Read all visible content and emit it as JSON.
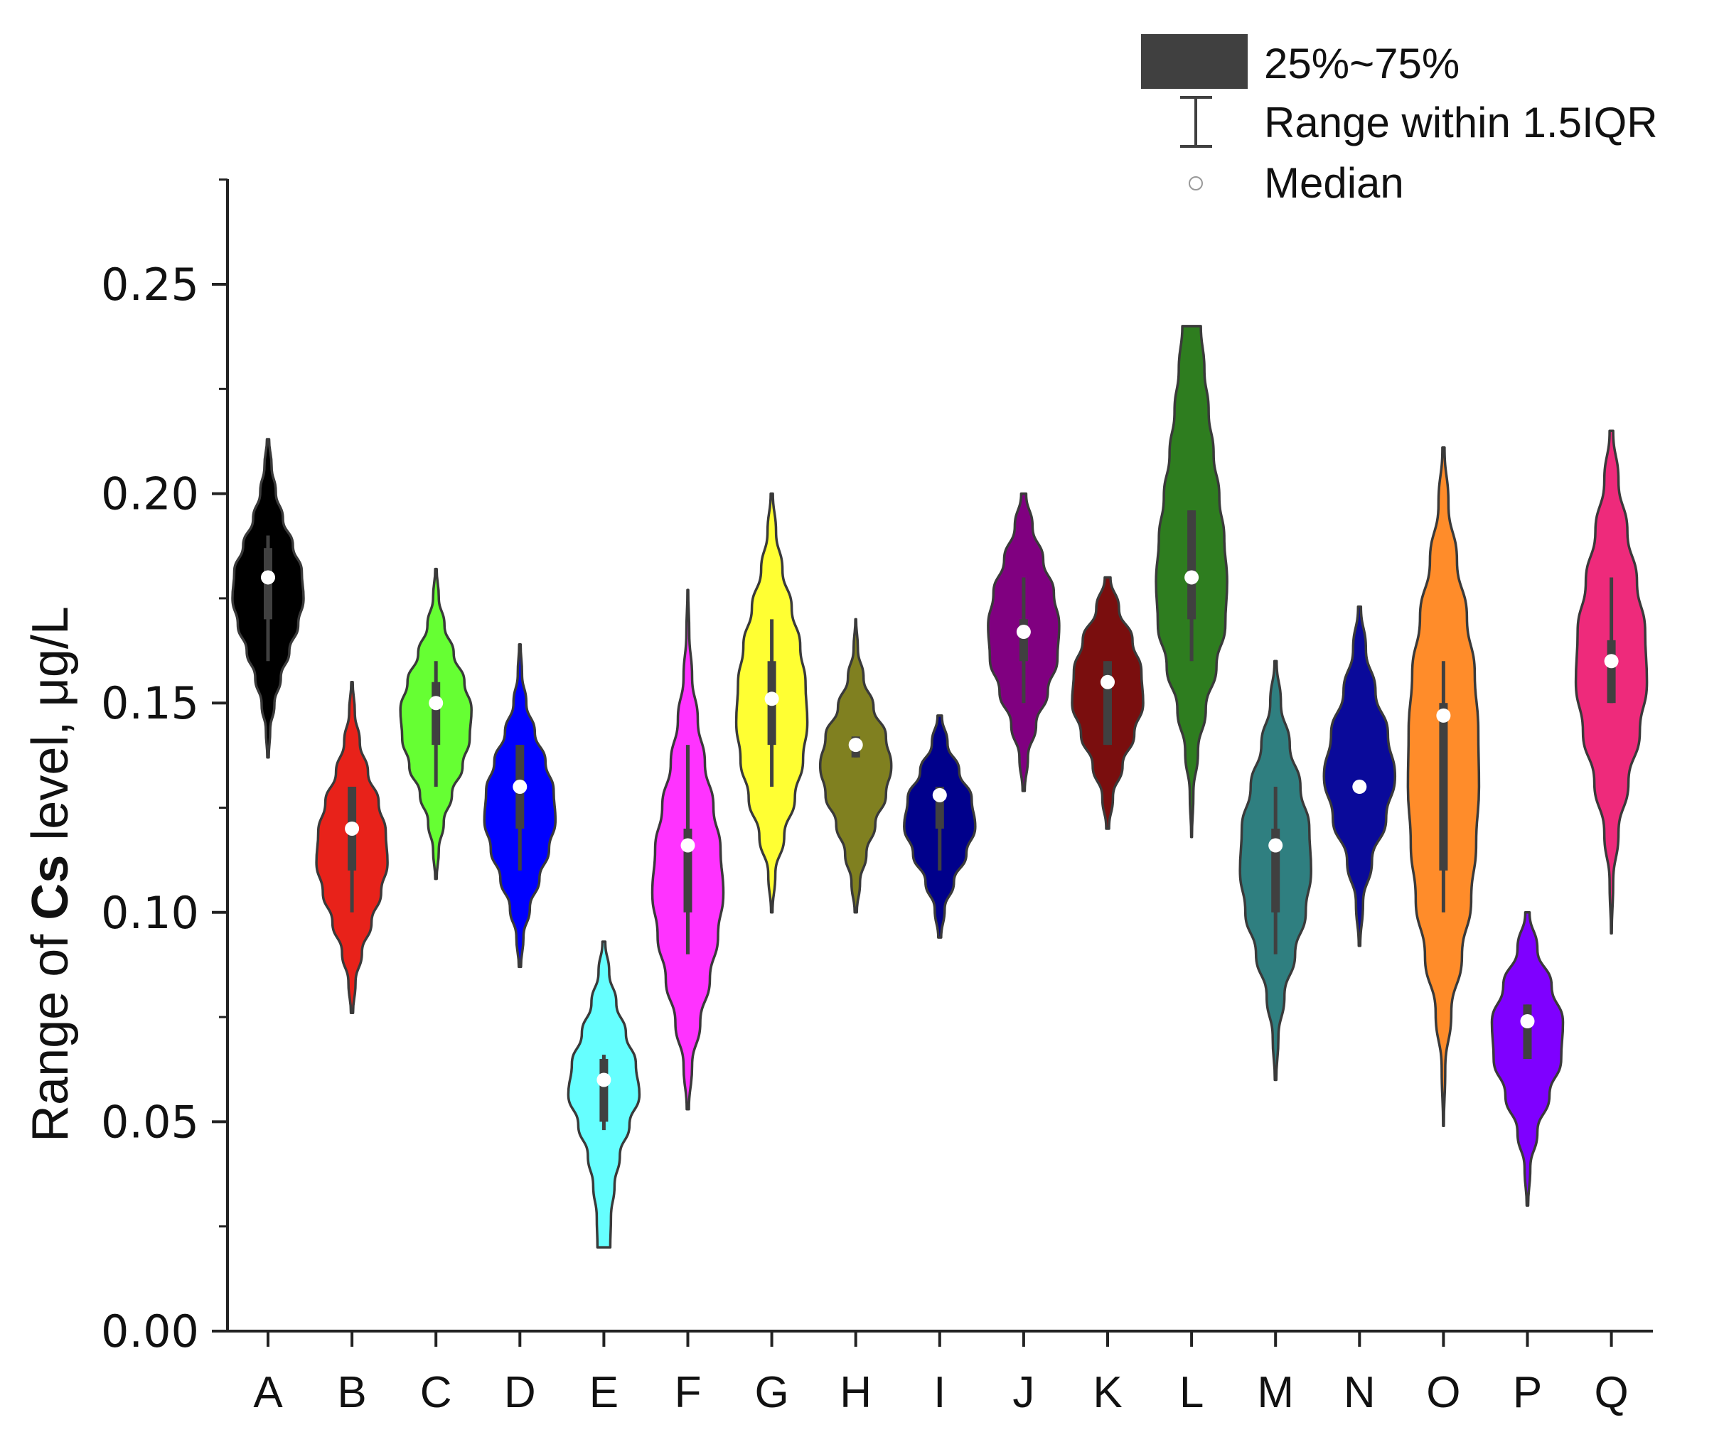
{
  "chart_data": {
    "type": "violin",
    "title": "",
    "xlabel": "",
    "ylabel_prefix": "Range of ",
    "ylabel_bold": "Cs",
    "ylabel_suffix": " level, μg/L",
    "ylim": [
      0,
      0.275
    ],
    "yticks": [
      0.0,
      0.05,
      0.1,
      0.15,
      0.2,
      0.25
    ],
    "ytick_labels": [
      "0.00",
      "0.05",
      "0.10",
      "0.15",
      "0.20",
      "0.25"
    ],
    "legend": {
      "position": "top-right",
      "box_label": "25%~75%",
      "whisker_label": "Range within 1.5IQR",
      "median_label": "Median"
    },
    "categories": [
      "A",
      "B",
      "C",
      "D",
      "E",
      "F",
      "G",
      "H",
      "I",
      "J",
      "K",
      "L",
      "M",
      "N",
      "O",
      "P",
      "Q"
    ],
    "violins": [
      {
        "name": "A",
        "color": "#000000",
        "min": 0.137,
        "max": 0.213,
        "q1": 0.17,
        "q3": 0.187,
        "wlo": 0.16,
        "whi": 0.19,
        "median": 0.18,
        "shape": [
          0.02,
          0.06,
          0.18,
          0.36,
          0.6,
          0.85,
          1.0,
          0.95,
          0.7,
          0.42,
          0.22,
          0.1,
          0.03
        ]
      },
      {
        "name": "B",
        "color": "#e8221a",
        "min": 0.076,
        "max": 0.155,
        "q1": 0.11,
        "q3": 0.13,
        "wlo": 0.1,
        "whi": 0.13,
        "median": 0.12,
        "shape": [
          0.03,
          0.1,
          0.28,
          0.55,
          0.82,
          1.0,
          0.95,
          0.75,
          0.45,
          0.22,
          0.08,
          0.02
        ]
      },
      {
        "name": "C",
        "color": "#66ff33",
        "min": 0.108,
        "max": 0.182,
        "q1": 0.14,
        "q3": 0.155,
        "wlo": 0.13,
        "whi": 0.16,
        "median": 0.15,
        "shape": [
          0.02,
          0.08,
          0.22,
          0.45,
          0.75,
          0.95,
          1.0,
          0.8,
          0.5,
          0.24,
          0.08,
          0.02
        ]
      },
      {
        "name": "D",
        "color": "#0000ff",
        "min": 0.087,
        "max": 0.164,
        "q1": 0.12,
        "q3": 0.14,
        "wlo": 0.11,
        "whi": 0.14,
        "median": 0.13,
        "shape": [
          0.03,
          0.1,
          0.28,
          0.55,
          0.82,
          1.0,
          0.95,
          0.72,
          0.42,
          0.18,
          0.06,
          0.02
        ]
      },
      {
        "name": "E",
        "color": "#66ffff",
        "min": 0.02,
        "max": 0.093,
        "q1": 0.05,
        "q3": 0.065,
        "wlo": 0.048,
        "whi": 0.066,
        "median": 0.06,
        "shape": [
          0.18,
          0.2,
          0.3,
          0.45,
          0.72,
          1.0,
          0.9,
          0.62,
          0.35,
          0.15,
          0.04
        ]
      },
      {
        "name": "F",
        "color": "#ff33ff",
        "min": 0.053,
        "max": 0.177,
        "q1": 0.1,
        "q3": 0.12,
        "wlo": 0.09,
        "whi": 0.14,
        "median": 0.116,
        "shape": [
          0.03,
          0.12,
          0.35,
          0.62,
          0.85,
          1.0,
          0.92,
          0.72,
          0.48,
          0.28,
          0.12,
          0.04,
          0.01
        ]
      },
      {
        "name": "G",
        "color": "#ffff33",
        "min": 0.1,
        "max": 0.2,
        "q1": 0.14,
        "q3": 0.16,
        "wlo": 0.13,
        "whi": 0.17,
        "median": 0.151,
        "shape": [
          0.02,
          0.1,
          0.35,
          0.65,
          0.88,
          1.0,
          0.95,
          0.8,
          0.56,
          0.3,
          0.12,
          0.03
        ]
      },
      {
        "name": "H",
        "color": "#808020",
        "min": 0.1,
        "max": 0.17,
        "q1": 0.137,
        "q3": 0.142,
        "wlo": 0.137,
        "whi": 0.142,
        "median": 0.14,
        "shape": [
          0.03,
          0.12,
          0.3,
          0.55,
          0.85,
          1.0,
          0.85,
          0.5,
          0.22,
          0.06,
          0.01
        ]
      },
      {
        "name": "I",
        "color": "#00008b",
        "min": 0.094,
        "max": 0.147,
        "q1": 0.12,
        "q3": 0.13,
        "wlo": 0.11,
        "whi": 0.13,
        "median": 0.128,
        "shape": [
          0.04,
          0.14,
          0.4,
          0.75,
          1.0,
          0.9,
          0.55,
          0.22,
          0.06
        ]
      },
      {
        "name": "J",
        "color": "#800080",
        "min": 0.129,
        "max": 0.2,
        "q1": 0.16,
        "q3": 0.17,
        "wlo": 0.15,
        "whi": 0.18,
        "median": 0.167,
        "shape": [
          0.03,
          0.12,
          0.35,
          0.68,
          0.95,
          1.0,
          0.85,
          0.55,
          0.25,
          0.07
        ]
      },
      {
        "name": "K",
        "color": "#7a0e0e",
        "min": 0.12,
        "max": 0.18,
        "q1": 0.14,
        "q3": 0.16,
        "wlo": 0.14,
        "whi": 0.16,
        "median": 0.155,
        "shape": [
          0.04,
          0.15,
          0.42,
          0.75,
          1.0,
          0.95,
          0.7,
          0.32,
          0.08
        ]
      },
      {
        "name": "L",
        "color": "#2e7d1f",
        "min": 0.118,
        "max": 0.24,
        "q1": 0.17,
        "q3": 0.196,
        "wlo": 0.16,
        "whi": 0.196,
        "median": 0.18,
        "shape": [
          0.01,
          0.05,
          0.18,
          0.4,
          0.7,
          0.95,
          1.0,
          0.92,
          0.78,
          0.62,
          0.48,
          0.36,
          0.26
        ]
      },
      {
        "name": "M",
        "color": "#2f7f80",
        "min": 0.06,
        "max": 0.16,
        "q1": 0.1,
        "q3": 0.12,
        "wlo": 0.09,
        "whi": 0.13,
        "median": 0.116,
        "shape": [
          0.02,
          0.08,
          0.25,
          0.55,
          0.85,
          1.0,
          0.95,
          0.7,
          0.4,
          0.15,
          0.03
        ]
      },
      {
        "name": "N",
        "color": "#0a0a9a",
        "min": 0.092,
        "max": 0.173,
        "q1": 0.129,
        "q3": 0.131,
        "wlo": 0.129,
        "whi": 0.131,
        "median": 0.13,
        "shape": [
          0.02,
          0.1,
          0.35,
          0.75,
          1.0,
          0.8,
          0.45,
          0.18,
          0.04
        ]
      },
      {
        "name": "O",
        "color": "#ff8c2a",
        "min": 0.049,
        "max": 0.211,
        "q1": 0.11,
        "q3": 0.15,
        "wlo": 0.1,
        "whi": 0.16,
        "median": 0.147,
        "shape": [
          0.01,
          0.05,
          0.22,
          0.52,
          0.78,
          0.92,
          1.0,
          0.98,
          0.88,
          0.66,
          0.38,
          0.14,
          0.03
        ]
      },
      {
        "name": "P",
        "color": "#7f00ff",
        "min": 0.03,
        "max": 0.1,
        "q1": 0.065,
        "q3": 0.078,
        "wlo": 0.065,
        "whi": 0.078,
        "median": 0.074,
        "shape": [
          0.02,
          0.08,
          0.28,
          0.62,
          0.95,
          1.0,
          0.68,
          0.28,
          0.06
        ]
      },
      {
        "name": "Q",
        "color": "#ee2a7b",
        "min": 0.095,
        "max": 0.215,
        "q1": 0.15,
        "q3": 0.165,
        "wlo": 0.15,
        "whi": 0.18,
        "median": 0.16,
        "shape": [
          0.01,
          0.05,
          0.2,
          0.48,
          0.8,
          1.0,
          0.95,
          0.72,
          0.45,
          0.2,
          0.05
        ]
      }
    ]
  }
}
